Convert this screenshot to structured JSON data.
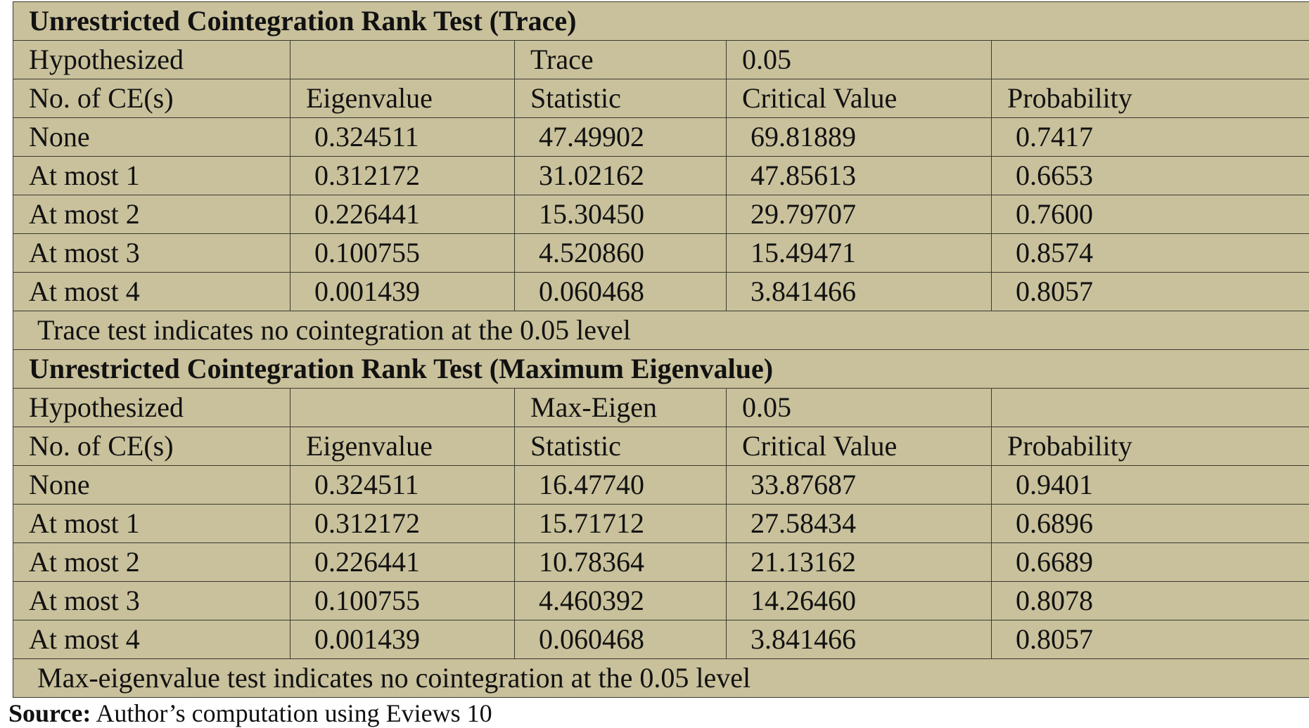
{
  "tables": [
    {
      "title": "Unrestricted Cointegration Rank Test (Trace)",
      "header_top": [
        "Hypothesized",
        null,
        "Trace",
        "0.05",
        null
      ],
      "header": [
        "No. of CE(s)",
        "Eigenvalue",
        "Statistic",
        "Critical Value",
        "Probability"
      ],
      "rows": [
        [
          "None",
          "0.324511",
          "47.49902",
          "69.81889",
          "0.7417"
        ],
        [
          "At most 1",
          "0.312172",
          "31.02162",
          "47.85613",
          "0.6653"
        ],
        [
          "At most 2",
          "0.226441",
          "15.30450",
          "29.79707",
          "0.7600"
        ],
        [
          "At most 3",
          "0.100755",
          "4.520860",
          "15.49471",
          "0.8574"
        ],
        [
          "At most 4",
          "0.001439",
          "0.060468",
          "3.841466",
          "0.8057"
        ]
      ],
      "note": "Trace test indicates no cointegration at the 0.05 level"
    },
    {
      "title": "Unrestricted Cointegration Rank Test (Maximum Eigenvalue)",
      "header_top": [
        "Hypothesized",
        null,
        "Max-Eigen",
        "0.05",
        null
      ],
      "header": [
        "No. of CE(s)",
        "Eigenvalue",
        "Statistic",
        "Critical Value",
        "Probability"
      ],
      "rows": [
        [
          "None",
          "0.324511",
          "16.47740",
          "33.87687",
          "0.9401"
        ],
        [
          "At most 1",
          "0.312172",
          "15.71712",
          "27.58434",
          "0.6896"
        ],
        [
          "At most 2",
          "0.226441",
          "10.78364",
          "21.13162",
          "0.6689"
        ],
        [
          "At most 3",
          "0.100755",
          "4.460392",
          "14.26460",
          "0.8078"
        ],
        [
          "At most 4",
          "0.001439",
          "0.060468",
          "3.841466",
          "0.8057"
        ]
      ],
      "note": "Max-eigenvalue test indicates no cointegration at the 0.05 level"
    }
  ],
  "source": {
    "label": "Source:",
    "text": "Author’s computation using Eviews 10"
  }
}
